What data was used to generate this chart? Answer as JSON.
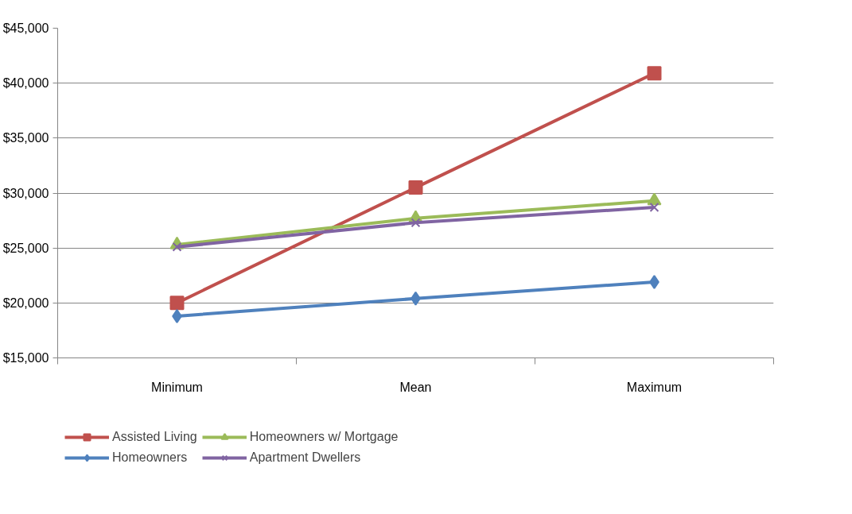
{
  "chart_data": {
    "type": "line",
    "categories": [
      "Minimum",
      "Mean",
      "Maximum"
    ],
    "series": [
      {
        "name": "Assisted Living",
        "color": "#c0504d",
        "marker": "square",
        "values": [
          20000,
          30500,
          40900
        ]
      },
      {
        "name": "Homeowners",
        "color": "#4f81bd",
        "marker": "diamond",
        "values": [
          18800,
          20400,
          21900
        ]
      },
      {
        "name": "Homeowners w/ Mortgage",
        "color": "#9bbb59",
        "marker": "triangle",
        "values": [
          25300,
          27700,
          29300
        ]
      },
      {
        "name": "Apartment Dwellers",
        "color": "#8064a2",
        "marker": "cross",
        "values": [
          25100,
          27300,
          28700
        ]
      }
    ],
    "ylim": [
      15000,
      45000
    ],
    "yticks": [
      {
        "value": 15000,
        "label": "$15,000"
      },
      {
        "value": 20000,
        "label": "$20,000"
      },
      {
        "value": 25000,
        "label": "$25,000"
      },
      {
        "value": 30000,
        "label": "$30,000"
      },
      {
        "value": 35000,
        "label": "$35,000"
      },
      {
        "value": 40000,
        "label": "$40,000"
      },
      {
        "value": 45000,
        "label": "$45,000"
      }
    ],
    "grid": "y",
    "legend": "bottom"
  }
}
